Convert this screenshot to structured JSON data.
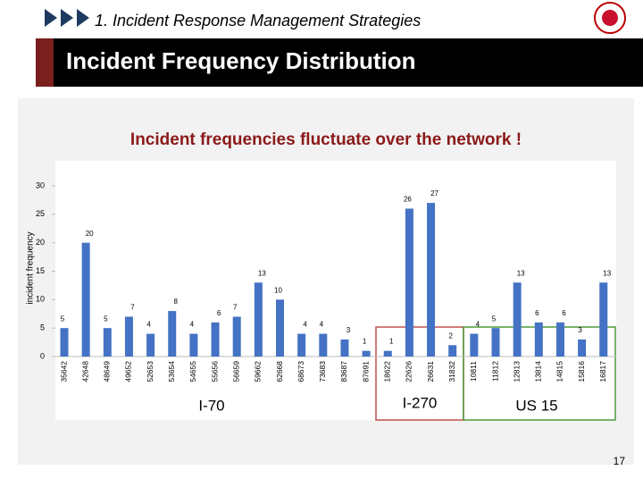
{
  "header": {
    "section": "1. Incident Response Management Strategies",
    "title": "Incident Frequency Distribution",
    "page_number": "17"
  },
  "chart_data": {
    "type": "bar",
    "title": "Incident frequencies fluctuate over the network !",
    "y_label": "incident frequency",
    "categories": [
      "35642",
      "42648",
      "48649",
      "49652",
      "52653",
      "53654",
      "54655",
      "55656",
      "56659",
      "59662",
      "62668",
      "68673",
      "73683",
      "83687",
      "87691",
      "18622",
      "22626",
      "26631",
      "31832",
      "10811",
      "11812",
      "12813",
      "13814",
      "14815",
      "15816",
      "16817"
    ],
    "values": [
      5,
      20,
      5,
      7,
      4,
      8,
      4,
      6,
      7,
      13,
      10,
      4,
      4,
      3,
      1,
      1,
      26,
      27,
      2,
      4,
      5,
      13,
      6,
      6,
      3,
      13
    ],
    "color": "#4472c4",
    "ylim": [
      0,
      30
    ],
    "yticks": [
      0,
      5,
      10,
      15,
      20,
      25,
      30
    ],
    "grid": false,
    "annotations": [
      "I-70",
      "I-270",
      "US 15"
    ]
  }
}
